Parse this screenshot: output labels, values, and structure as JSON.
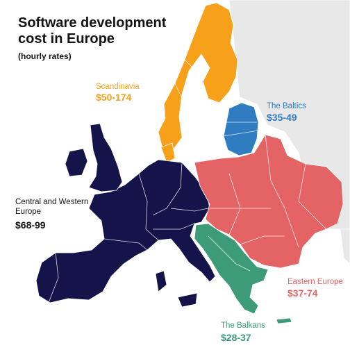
{
  "title": "Software development cost in Europe",
  "subtitle": "(hourly rates)",
  "regions": {
    "scandinavia": {
      "name": "Scandinavia",
      "price": "$50-174",
      "color": "#F7A11A"
    },
    "baltics": {
      "name": "The Baltics",
      "price": "$35-49",
      "color": "#2F7CC1"
    },
    "central_western": {
      "name": "Central and Western Europe",
      "price": "$68-99",
      "color": "#14144B"
    },
    "eastern": {
      "name": "Eastern Europe",
      "price": "$37-74",
      "color": "#E46465"
    },
    "balkans": {
      "name": "The Balkans",
      "price": "$28-37",
      "color": "#3D9B7A"
    }
  },
  "background_land_color": "#E8E8E8"
}
